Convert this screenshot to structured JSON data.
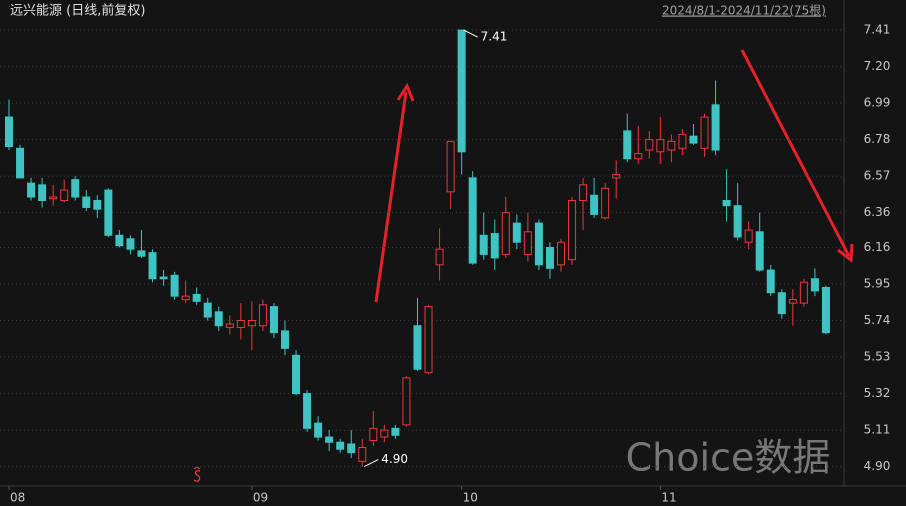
{
  "chart_data": {
    "type": "candlestick",
    "title": "远兴能源 (日线,前复权)",
    "subtitle": "2024/8/1-2024/11/22(75根)",
    "watermark": "Choice数据",
    "annotations": [
      "7.41",
      "4.90"
    ],
    "categories": [
      "08",
      null,
      null,
      null,
      null,
      null,
      null,
      null,
      null,
      null,
      null,
      null,
      null,
      null,
      null,
      null,
      null,
      null,
      null,
      null,
      null,
      null,
      "09",
      null,
      null,
      null,
      null,
      null,
      null,
      null,
      null,
      null,
      null,
      null,
      null,
      null,
      null,
      null,
      null,
      null,
      null,
      "10",
      null,
      null,
      null,
      null,
      null,
      null,
      null,
      null,
      null,
      null,
      null,
      null,
      null,
      null,
      null,
      null,
      null,
      "11",
      null,
      null,
      null,
      null,
      null,
      null,
      null,
      null,
      null,
      null,
      null,
      null,
      null,
      null,
      null
    ],
    "open": [
      6.91,
      6.73,
      6.53,
      6.52,
      6.44,
      6.43,
      6.55,
      6.45,
      6.43,
      6.49,
      6.23,
      6.21,
      6.14,
      6.13,
      5.99,
      6.0,
      5.86,
      5.89,
      5.84,
      5.79,
      5.7,
      5.7,
      5.71,
      5.71,
      5.82,
      5.68,
      5.54,
      5.32,
      5.15,
      5.07,
      5.04,
      5.03,
      4.93,
      5.05,
      5.07,
      5.12,
      5.14,
      5.71,
      5.44,
      6.06,
      6.48,
      7.41,
      6.56,
      6.23,
      6.24,
      6.12,
      6.3,
      6.12,
      6.3,
      6.16,
      6.06,
      6.09,
      6.43,
      6.46,
      6.33,
      6.56,
      6.83,
      6.67,
      6.72,
      6.71,
      6.72,
      6.73,
      6.8,
      6.73,
      6.98,
      6.43,
      6.4,
      6.19,
      6.25,
      6.03,
      5.9,
      5.84,
      5.84,
      5.98,
      5.93
    ],
    "high": [
      7.01,
      6.75,
      6.56,
      6.56,
      6.52,
      6.55,
      6.57,
      6.49,
      6.46,
      6.5,
      6.26,
      6.23,
      6.26,
      6.15,
      6.03,
      6.02,
      5.97,
      5.93,
      5.87,
      5.82,
      5.77,
      5.84,
      5.85,
      5.86,
      5.84,
      5.74,
      5.57,
      5.34,
      5.19,
      5.11,
      5.06,
      5.11,
      5.06,
      5.22,
      5.14,
      5.14,
      5.42,
      5.87,
      5.83,
      6.27,
      6.77,
      7.41,
      6.6,
      6.36,
      6.32,
      6.45,
      6.35,
      6.36,
      6.32,
      6.19,
      6.21,
      6.45,
      6.56,
      6.56,
      6.53,
      6.66,
      6.93,
      6.86,
      6.83,
      6.91,
      6.81,
      6.84,
      6.87,
      6.93,
      7.12,
      6.61,
      6.53,
      6.31,
      6.36,
      6.06,
      5.92,
      5.92,
      5.98,
      6.04,
      5.94
    ],
    "low": [
      6.72,
      6.56,
      6.43,
      6.39,
      6.4,
      6.42,
      6.43,
      6.37,
      6.33,
      6.22,
      6.16,
      6.12,
      6.1,
      5.96,
      5.94,
      5.86,
      5.84,
      5.83,
      5.74,
      5.68,
      5.66,
      5.63,
      5.57,
      5.68,
      5.64,
      5.54,
      5.31,
      5.1,
      5.05,
      4.99,
      4.98,
      4.95,
      4.9,
      5.02,
      5.04,
      5.06,
      5.13,
      5.45,
      5.43,
      5.97,
      6.38,
      6.58,
      6.06,
      6.09,
      6.03,
      6.1,
      6.15,
      6.08,
      6.03,
      5.98,
      6.02,
      6.06,
      6.26,
      6.33,
      6.32,
      6.44,
      6.65,
      6.64,
      6.67,
      6.64,
      6.65,
      6.69,
      6.75,
      6.68,
      6.69,
      6.31,
      6.2,
      6.15,
      6.02,
      5.88,
      5.75,
      5.71,
      5.82,
      5.88,
      5.66
    ],
    "close": [
      6.74,
      6.56,
      6.45,
      6.43,
      6.45,
      6.49,
      6.45,
      6.39,
      6.38,
      6.23,
      6.17,
      6.15,
      6.11,
      5.98,
      5.98,
      5.88,
      5.88,
      5.85,
      5.76,
      5.71,
      5.72,
      5.74,
      5.74,
      5.83,
      5.67,
      5.58,
      5.32,
      5.12,
      5.07,
      5.04,
      5.0,
      4.98,
      5.01,
      5.12,
      5.11,
      5.08,
      5.41,
      5.46,
      5.82,
      6.15,
      6.77,
      6.71,
      6.07,
      6.12,
      6.1,
      6.36,
      6.19,
      6.25,
      6.06,
      6.04,
      6.19,
      6.43,
      6.52,
      6.35,
      6.5,
      6.58,
      6.67,
      6.7,
      6.78,
      6.78,
      6.77,
      6.81,
      6.76,
      6.91,
      6.72,
      6.4,
      6.22,
      6.26,
      6.03,
      5.9,
      5.78,
      5.86,
      5.96,
      5.91,
      5.67
    ],
    "up_color": "#e8393d",
    "down_color": "#3fc3c3",
    "ylim": [
      4.8,
      7.485
    ],
    "yticks": [
      7.41,
      {
        "value": 7.2,
        "label": "7.20"
      },
      6.99,
      6.78,
      6.57,
      6.36,
      6.16,
      5.95,
      5.74,
      5.53,
      5.32,
      5.11,
      {
        "value": 4.9,
        "label": "4.90"
      }
    ],
    "grid": true
  }
}
